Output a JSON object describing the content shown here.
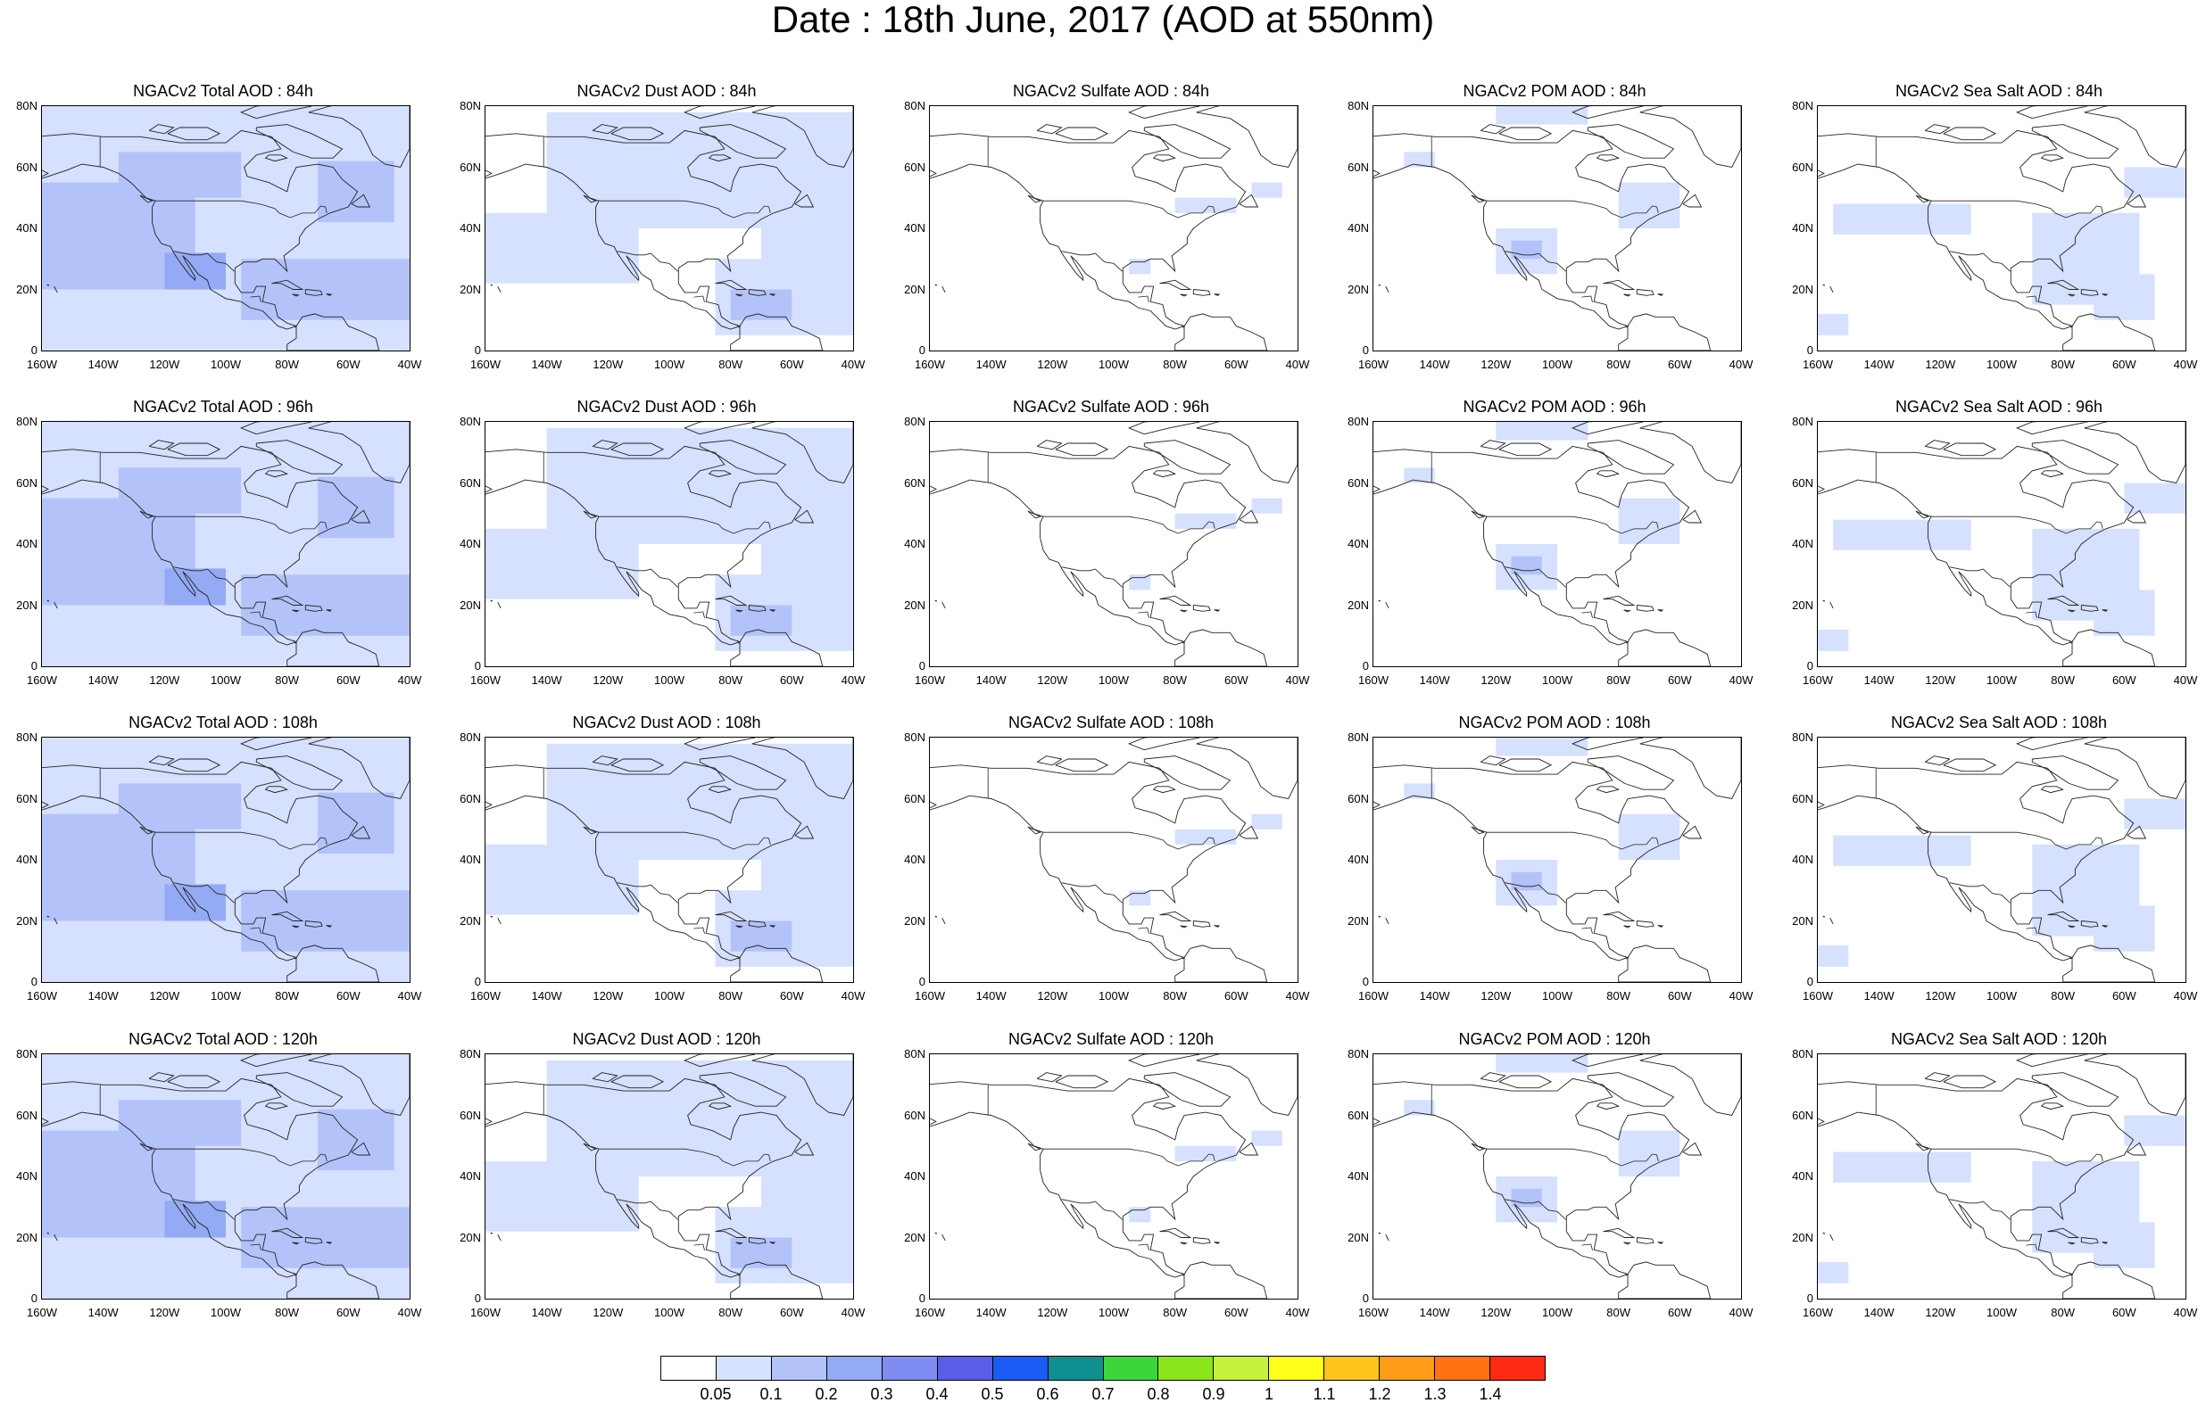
{
  "title": "Date : 18th June, 2017 (AOD at 550nm)",
  "panel_rows": [
    [
      "NGACv2 Total AOD : 84h",
      "NGACv2 Dust AOD : 84h",
      "NGACv2 Sulfate AOD : 84h",
      "NGACv2 POM AOD : 84h",
      "NGACv2 Sea Salt AOD : 84h"
    ],
    [
      "NGACv2 Total AOD : 96h",
      "NGACv2 Dust AOD : 96h",
      "NGACv2 Sulfate AOD : 96h",
      "NGACv2 POM AOD : 96h",
      "NGACv2 Sea Salt AOD : 96h"
    ],
    [
      "NGACv2 Total AOD : 108h",
      "NGACv2 Dust AOD : 108h",
      "NGACv2 Sulfate AOD : 108h",
      "NGACv2 POM AOD : 108h",
      "NGACv2 Sea Salt AOD : 108h"
    ],
    [
      "NGACv2 Total AOD : 120h",
      "NGACv2 Dust AOD : 120h",
      "NGACv2 Sulfate AOD : 120h",
      "NGACv2 POM AOD : 120h",
      "NGACv2 Sea Salt  AOD : 120h"
    ]
  ],
  "lat_labels": [
    "80N",
    "60N",
    "40N",
    "20N",
    "0"
  ],
  "lon_labels": [
    "160W",
    "140W",
    "120W",
    "100W",
    "80W",
    "60W",
    "40W"
  ],
  "map_extent": {
    "lon": [
      -160,
      -40
    ],
    "lat": [
      0,
      80
    ]
  },
  "colorbar": {
    "labels": [
      "0.05",
      "0.1",
      "0.2",
      "0.3",
      "0.4",
      "0.5",
      "0.6",
      "0.7",
      "0.8",
      "0.9",
      "1",
      "1.1",
      "1.2",
      "1.3",
      "1.4"
    ],
    "colors": [
      "#ffffff",
      "#d6e0ff",
      "#b3c3fa",
      "#94aaf5",
      "#7f8cf2",
      "#5a5ee6",
      "#1a5cf5",
      "#0f8f8f",
      "#3cd63c",
      "#8ae61a",
      "#c6f03e",
      "#ffff1a",
      "#ffc41a",
      "#ff9c1a",
      "#ff7314",
      "#ff2a14"
    ]
  }
}
